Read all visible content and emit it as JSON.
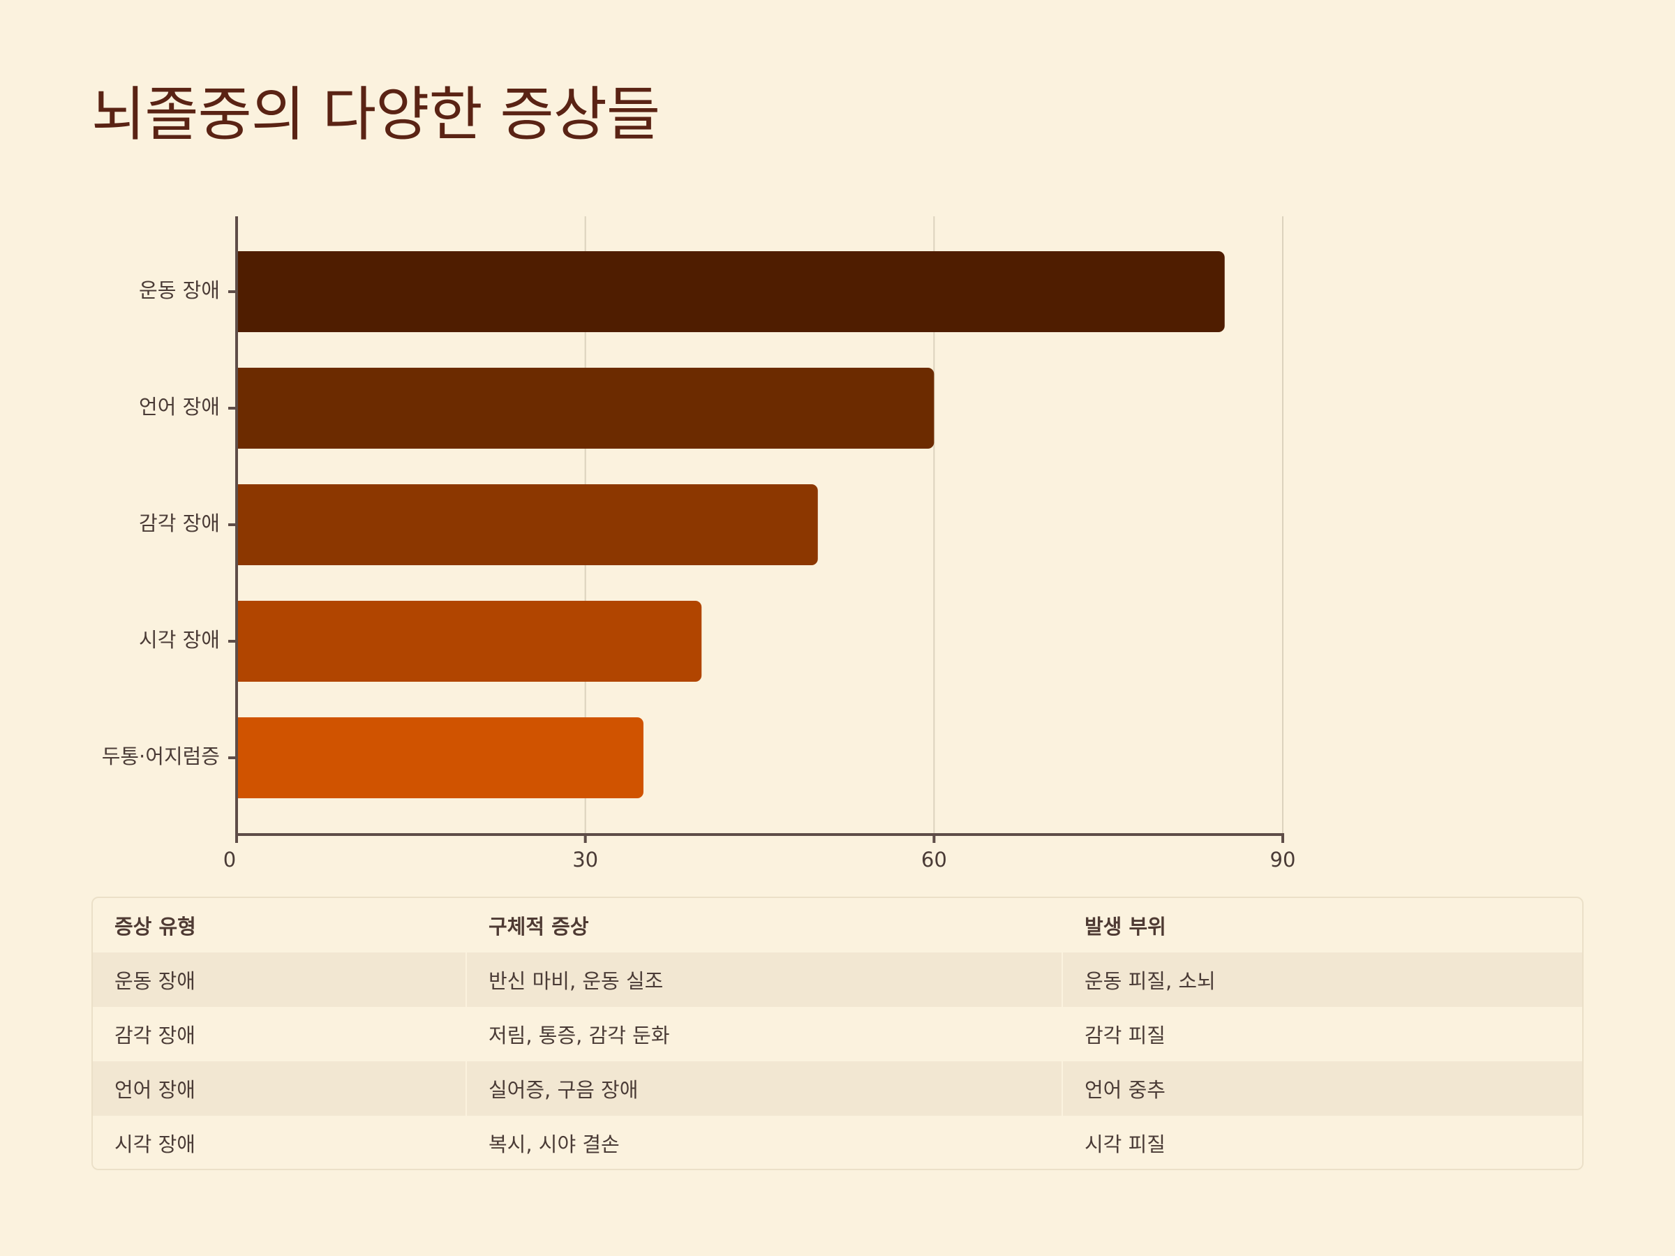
{
  "title": "뇌졸중의 다양한 증상들",
  "chart_data": {
    "type": "bar",
    "orientation": "horizontal",
    "categories": [
      "운동 장애",
      "언어 장애",
      "감각 장애",
      "시각 장애",
      "두통·어지럼증"
    ],
    "values": [
      85,
      60,
      50,
      40,
      35
    ],
    "colors": [
      "#4f1d00",
      "#6c2b00",
      "#8c3700",
      "#b14500",
      "#d05300"
    ],
    "xticks": [
      0,
      30,
      60,
      90
    ],
    "xlim": [
      0,
      90
    ],
    "grid": true
  },
  "table": {
    "headers": [
      "증상 유형",
      "구체적 증상",
      "발생 부위"
    ],
    "rows": [
      [
        "운동 장애",
        "반신 마비, 운동 실조",
        "운동 피질, 소뇌"
      ],
      [
        "감각 장애",
        "저림, 통증, 감각 둔화",
        "감각 피질"
      ],
      [
        "언어 장애",
        "실어증, 구음 장애",
        "언어 중추"
      ],
      [
        "시각 장애",
        "복시, 시야 결손",
        "시각 피질"
      ]
    ]
  }
}
